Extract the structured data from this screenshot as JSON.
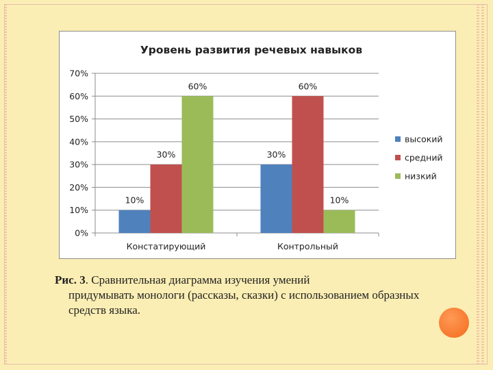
{
  "caption": {
    "label": "Рис. 3",
    "text_first": ". Сравнительная диаграмма изучения умений",
    "text_rest": "придумывать монологи (рассказы, сказки) с использованием образных средств языка."
  },
  "colors": {
    "background": "#fbeeb4",
    "accent_dot": "#f36a1c"
  },
  "chart_data": {
    "type": "bar",
    "title": "Уровень развития речевых навыков",
    "categories": [
      "Констатирующий",
      "Контрольный"
    ],
    "series": [
      {
        "name": "высокий",
        "color": "#4f81bd",
        "values": [
          10,
          30
        ]
      },
      {
        "name": "средний",
        "color": "#c0504d",
        "values": [
          30,
          60
        ]
      },
      {
        "name": "низкий",
        "color": "#9bbb59",
        "values": [
          60,
          10
        ]
      }
    ],
    "ylim": [
      0,
      70
    ],
    "yticks": [
      0,
      10,
      20,
      30,
      40,
      50,
      60,
      70
    ],
    "ytick_labels": [
      "0%",
      "10%",
      "20%",
      "30%",
      "40%",
      "50%",
      "60%",
      "70%"
    ],
    "data_labels": [
      [
        "10%",
        "30%"
      ],
      [
        "30%",
        "60%"
      ],
      [
        "60%",
        "10%"
      ]
    ],
    "xlabel": "",
    "ylabel": "",
    "grid": true,
    "legend": "right"
  }
}
